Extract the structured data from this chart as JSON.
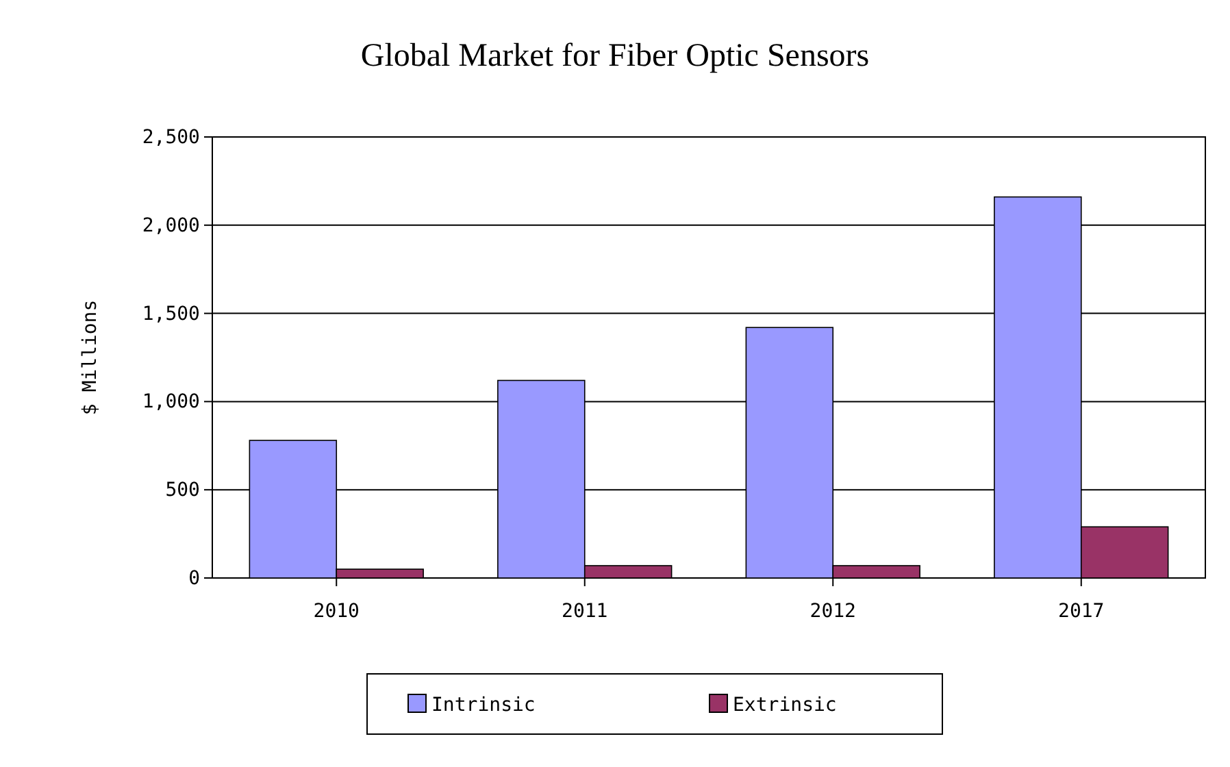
{
  "chart_data": {
    "type": "bar",
    "title": "Global Market for Fiber Optic Sensors",
    "ylabel": "$ Millions",
    "categories": [
      "2010",
      "2011",
      "2012",
      "2017"
    ],
    "series": [
      {
        "name": "Intrinsic",
        "color": "#9999ff",
        "values": [
          780,
          1120,
          1420,
          2160
        ]
      },
      {
        "name": "Extrinsic",
        "color": "#993366",
        "values": [
          50,
          70,
          70,
          290
        ]
      }
    ],
    "ylim": [
      0,
      2500
    ],
    "yticks": [
      0,
      {
        "value": 500,
        "label": "500"
      },
      {
        "value": 1000,
        "label": "1,000"
      },
      {
        "value": 1500,
        "label": "1,500"
      },
      {
        "value": 2000,
        "label": "2,000"
      },
      {
        "value": 2500,
        "label": "2,500"
      }
    ],
    "grid": "y",
    "legend": "bottom"
  }
}
